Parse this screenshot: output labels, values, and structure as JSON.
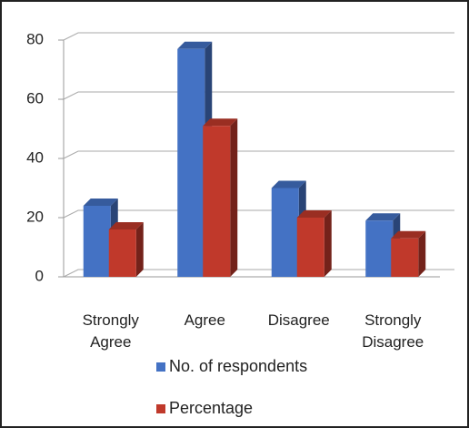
{
  "chart_data": {
    "type": "bar3d",
    "categories": [
      "Strongly Agree",
      "Agree",
      "Disagree",
      "Strongly Disagree"
    ],
    "series": [
      {
        "name": "No. of respondents",
        "color": "#4472c4",
        "values": [
          24,
          77,
          30,
          19
        ]
      },
      {
        "name": "Percentage",
        "color": "#c0392b",
        "values": [
          16,
          51,
          20,
          13
        ]
      }
    ],
    "ylim": [
      0,
      80
    ],
    "yticks": [
      0,
      20,
      40,
      60,
      80
    ],
    "grid": true
  }
}
